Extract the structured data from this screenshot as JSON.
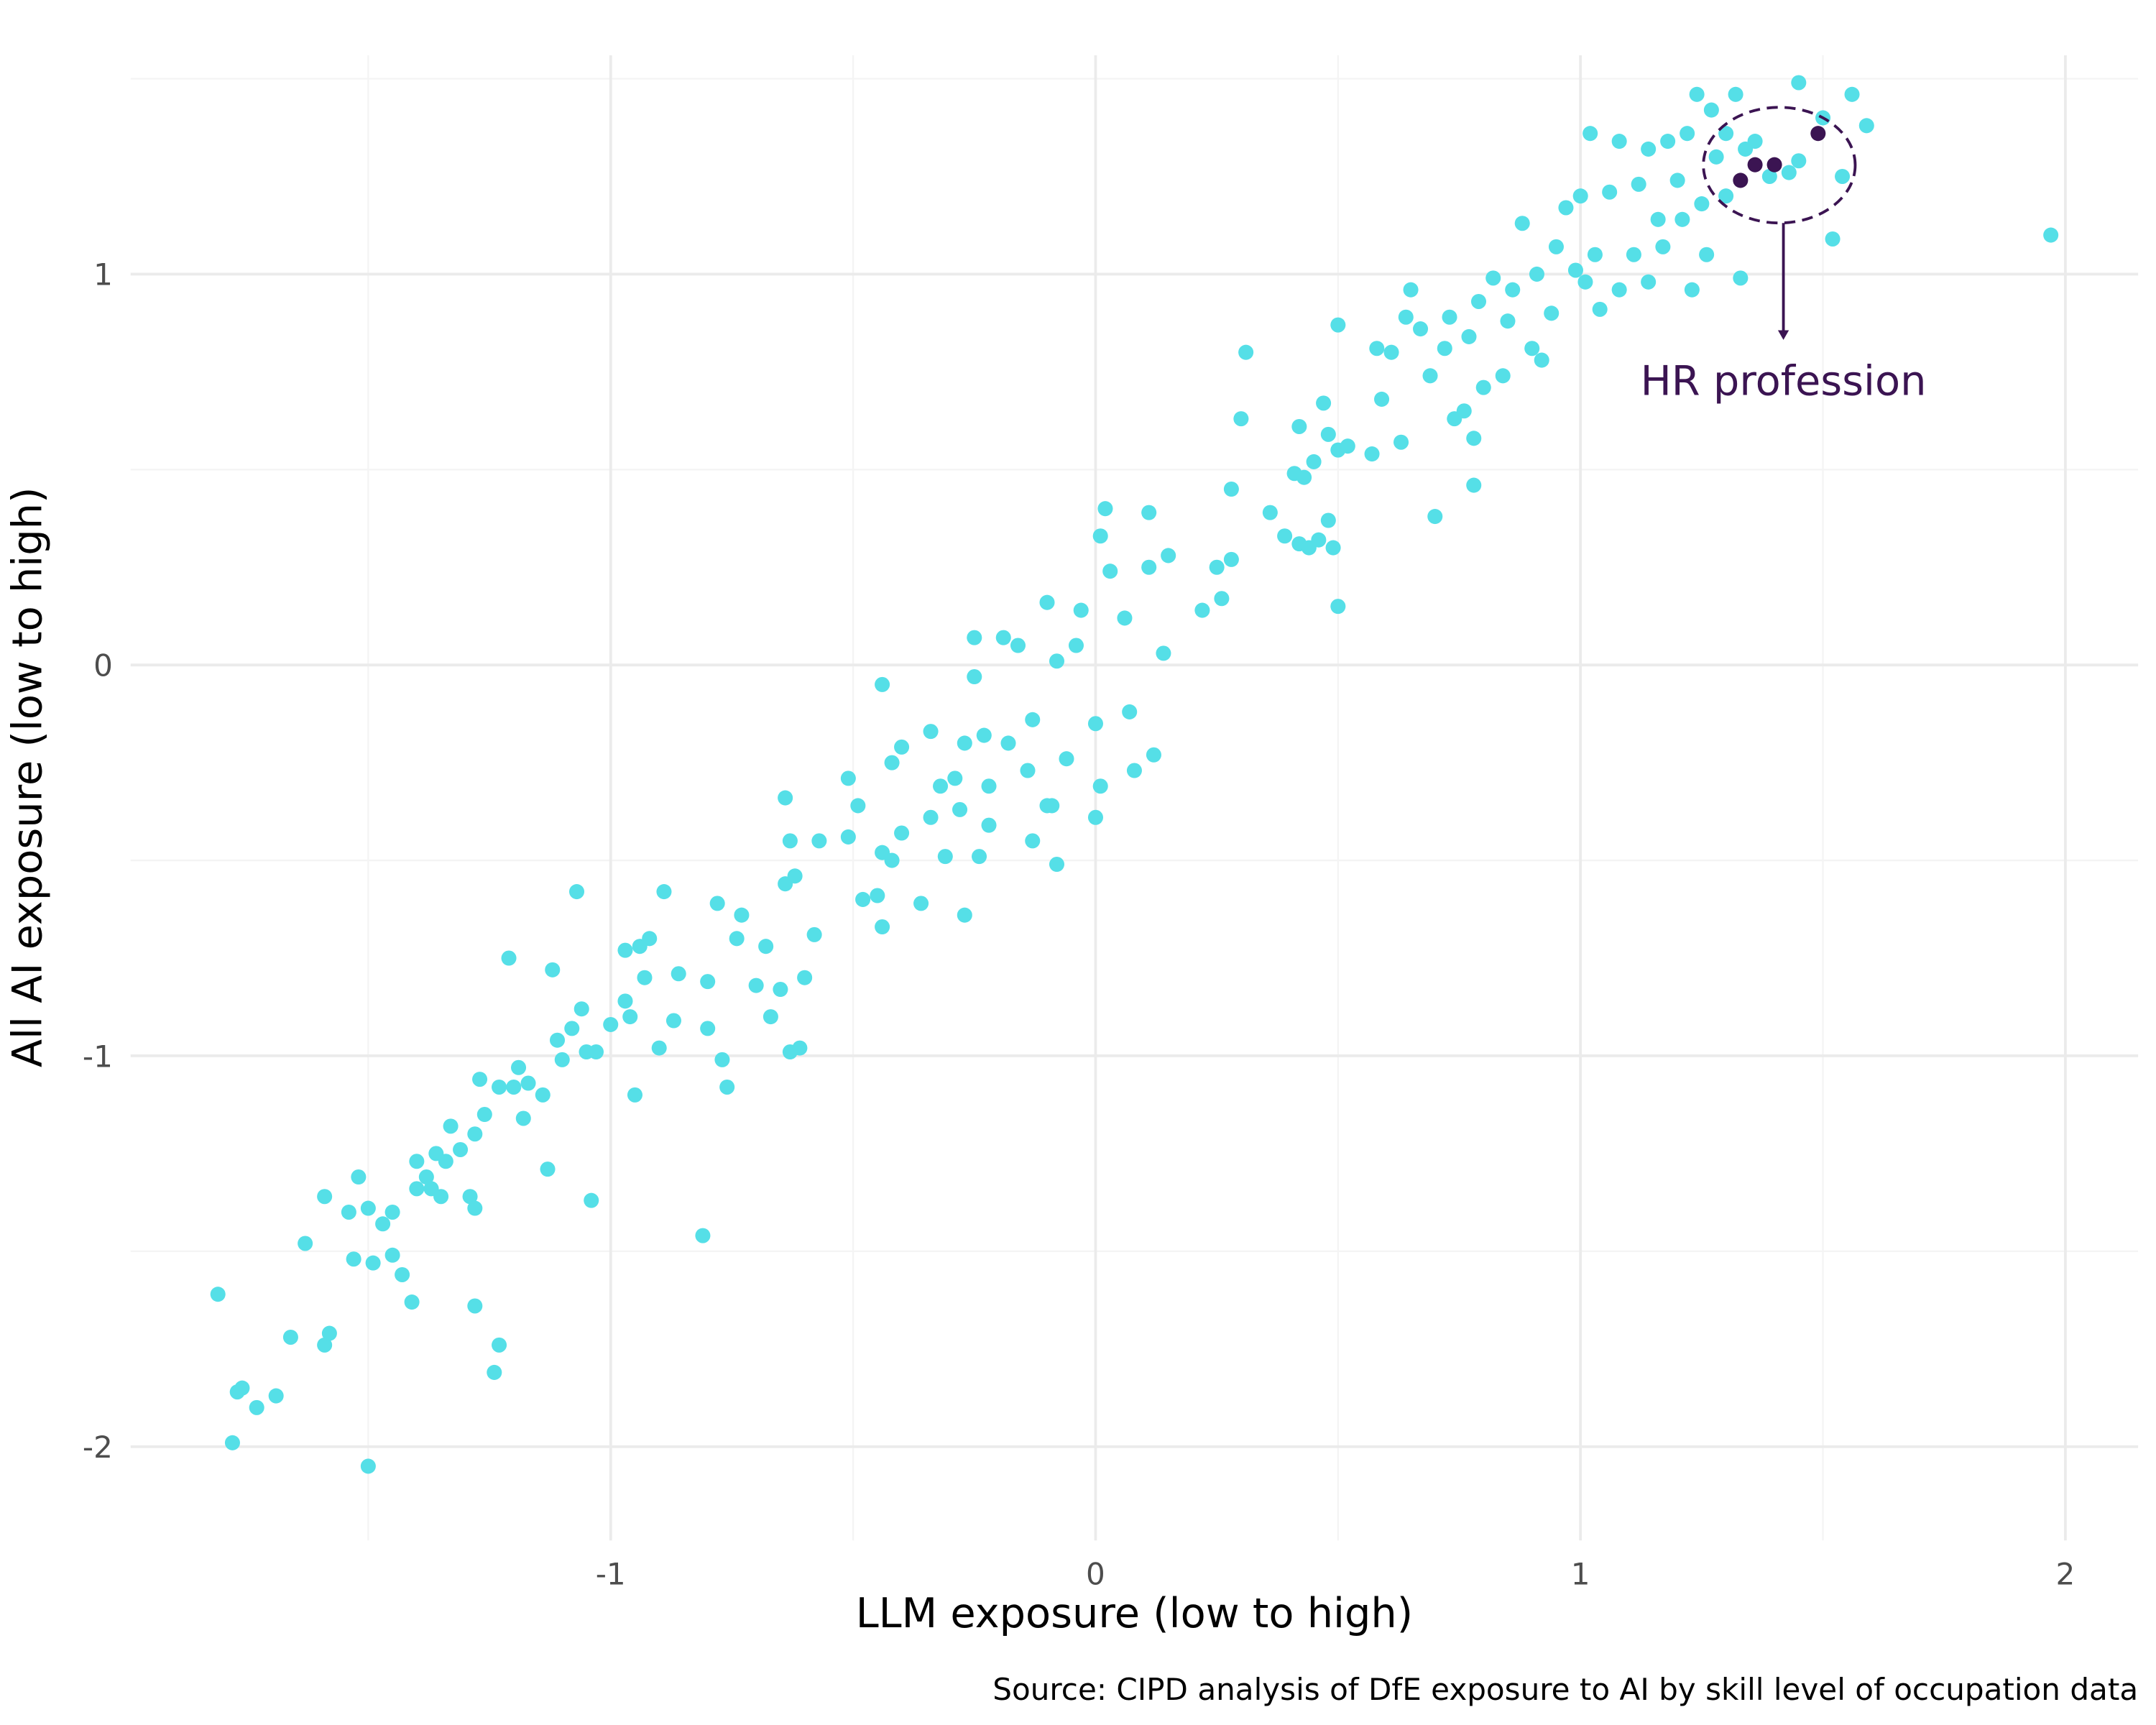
{
  "chart_data": {
    "type": "scatter",
    "x_label": "LLM exposure (low to high)",
    "y_label": "All AI exposure (low to high)",
    "caption": "Source: CIPD analysis of DfE exposure to AI by skill level of occupation data",
    "annotation": "HR profession",
    "xlim": [
      -1.99,
      2.15
    ],
    "ylim": [
      -2.24,
      1.56
    ],
    "xticks": [
      -1,
      0,
      1,
      2
    ],
    "yticks": [
      -2,
      -1,
      0,
      1
    ],
    "xminorticks": [
      -1.5,
      -0.5,
      0.5,
      1.5
    ],
    "yminorticks": [
      -1.5,
      -0.5,
      0.5,
      1.5
    ],
    "grid": true,
    "series": [
      {
        "color": "#55dfe7",
        "x": [
          -1.81,
          -1.78,
          -1.77,
          -1.76,
          -1.73,
          -1.69,
          -1.66,
          -1.63,
          -1.59,
          -1.59,
          -1.58,
          -1.54,
          -1.53,
          -1.52,
          -1.5,
          -1.5,
          -1.49,
          -1.47,
          -1.45,
          -1.45,
          -1.43,
          -1.41,
          -1.4,
          -1.4,
          -1.38,
          -1.37,
          -1.36,
          -1.35,
          -1.34,
          -1.33,
          -1.31,
          -1.29,
          -1.28,
          -1.28,
          -1.28,
          -1.27,
          -1.26,
          -1.24,
          -1.23,
          -1.23,
          -1.21,
          -1.2,
          -1.19,
          -1.18,
          -1.17,
          -1.14,
          -1.13,
          -1.12,
          -1.11,
          -1.1,
          -1.08,
          -1.07,
          -1.06,
          -1.05,
          -1.04,
          -1.03,
          -1.0,
          -0.97,
          -0.97,
          -0.96,
          -0.95,
          -0.94,
          -0.93,
          -0.92,
          -0.9,
          -0.89,
          -0.87,
          -0.86,
          -0.81,
          -0.8,
          -0.8,
          -0.78,
          -0.77,
          -0.76,
          -0.74,
          -0.73,
          -0.7,
          -0.68,
          -0.67,
          -0.65,
          -0.64,
          -0.64,
          -0.63,
          -0.63,
          -0.62,
          -0.61,
          -0.6,
          -0.58,
          -0.57,
          -0.51,
          -0.51,
          -0.49,
          -0.48,
          -0.45,
          -0.44,
          -0.44,
          -0.44,
          -0.42,
          -0.42,
          -0.4,
          -0.4,
          -0.36,
          -0.34,
          -0.34,
          -0.32,
          -0.31,
          -0.29,
          -0.28,
          -0.27,
          -0.27,
          -0.25,
          -0.25,
          -0.24,
          -0.23,
          -0.22,
          -0.22,
          -0.19,
          -0.18,
          -0.16,
          -0.14,
          -0.13,
          -0.13,
          -0.1,
          -0.1,
          -0.09,
          -0.08,
          -0.08,
          -0.06,
          -0.04,
          -0.03,
          0.0,
          0.0,
          0.01,
          0.01,
          0.02,
          0.03,
          0.06,
          0.07,
          0.08,
          0.11,
          0.11,
          0.12,
          0.14,
          0.15,
          0.22,
          0.25,
          0.26,
          0.28,
          0.28,
          0.3,
          0.31,
          0.36,
          0.39,
          0.41,
          0.42,
          0.42,
          0.43,
          0.44,
          0.45,
          0.46,
          0.47,
          0.48,
          0.48,
          0.49,
          0.5,
          0.5,
          0.5,
          0.52,
          0.57,
          0.58,
          0.59,
          0.61,
          0.63,
          0.64,
          0.65,
          0.67,
          0.69,
          0.7,
          0.72,
          0.73,
          0.74,
          0.76,
          0.77,
          0.78,
          0.78,
          0.79,
          0.8,
          0.82,
          0.84,
          0.85,
          0.86,
          0.88,
          0.9,
          0.91,
          0.92,
          0.94,
          0.95,
          0.97,
          0.99,
          1.0,
          1.01,
          1.02,
          1.03,
          1.04,
          1.06,
          1.08,
          1.08,
          1.11,
          1.12,
          1.14,
          1.14,
          1.16,
          1.17,
          1.18,
          1.2,
          1.21,
          1.22,
          1.23,
          1.24,
          1.25,
          1.26,
          1.27,
          1.28,
          1.3,
          1.3,
          1.32,
          1.33,
          1.34,
          1.36,
          1.39,
          1.43,
          1.45,
          1.45,
          1.5,
          1.52,
          1.54,
          1.56,
          1.59,
          1.97
        ],
        "y": [
          -1.61,
          -1.99,
          -1.86,
          -1.85,
          -1.9,
          -1.87,
          -1.72,
          -1.48,
          -1.36,
          -1.74,
          -1.71,
          -1.4,
          -1.52,
          -1.31,
          -2.05,
          -1.39,
          -1.53,
          -1.43,
          -1.4,
          -1.51,
          -1.56,
          -1.63,
          -1.34,
          -1.27,
          -1.31,
          -1.34,
          -1.25,
          -1.36,
          -1.27,
          -1.18,
          -1.24,
          -1.36,
          -1.39,
          -1.64,
          -1.2,
          -1.06,
          -1.15,
          -1.81,
          -1.74,
          -1.08,
          -0.75,
          -1.08,
          -1.03,
          -1.16,
          -1.07,
          -1.1,
          -1.29,
          -0.78,
          -0.96,
          -1.01,
          -0.93,
          -0.58,
          -0.88,
          -0.99,
          -1.37,
          -0.99,
          -0.92,
          -0.86,
          -0.73,
          -0.9,
          -1.1,
          -0.72,
          -0.8,
          -0.7,
          -0.98,
          -0.58,
          -0.91,
          -0.79,
          -1.46,
          -0.81,
          -0.93,
          -0.61,
          -1.01,
          -1.08,
          -0.7,
          -0.64,
          -0.82,
          -0.72,
          -0.9,
          -0.83,
          -0.34,
          -0.56,
          -0.45,
          -0.99,
          -0.54,
          -0.98,
          -0.8,
          -0.69,
          -0.45,
          -0.29,
          -0.44,
          -0.36,
          -0.6,
          -0.59,
          -0.05,
          -0.48,
          -0.67,
          -0.25,
          -0.5,
          -0.21,
          -0.43,
          -0.61,
          -0.17,
          -0.39,
          -0.31,
          -0.49,
          -0.29,
          -0.37,
          -0.2,
          -0.64,
          -0.03,
          0.07,
          -0.49,
          -0.18,
          -0.31,
          -0.41,
          0.07,
          -0.2,
          0.05,
          -0.27,
          -0.14,
          -0.45,
          -0.36,
          0.16,
          -0.36,
          -0.51,
          0.01,
          -0.24,
          0.05,
          0.14,
          -0.15,
          -0.39,
          0.33,
          -0.31,
          0.4,
          0.24,
          0.12,
          -0.12,
          -0.27,
          0.25,
          0.39,
          -0.23,
          0.03,
          0.28,
          0.14,
          0.25,
          0.17,
          0.27,
          0.45,
          0.63,
          0.8,
          0.39,
          0.33,
          0.49,
          0.61,
          0.31,
          0.48,
          0.3,
          0.52,
          0.32,
          0.67,
          0.37,
          0.59,
          0.3,
          0.15,
          0.87,
          0.55,
          0.56,
          0.54,
          0.81,
          0.68,
          0.8,
          0.57,
          0.89,
          0.96,
          0.86,
          0.74,
          0.38,
          0.81,
          0.89,
          0.63,
          0.65,
          0.84,
          0.58,
          0.46,
          0.93,
          0.71,
          0.99,
          0.74,
          0.88,
          0.96,
          1.13,
          0.81,
          1.0,
          0.78,
          0.9,
          1.07,
          1.17,
          1.01,
          1.2,
          0.98,
          1.36,
          1.05,
          0.91,
          1.21,
          0.96,
          1.34,
          1.05,
          1.23,
          0.98,
          1.32,
          1.14,
          1.07,
          1.34,
          1.24,
          1.14,
          1.36,
          0.96,
          1.46,
          1.18,
          1.05,
          1.42,
          1.3,
          1.36,
          1.2,
          1.46,
          0.99,
          1.32,
          1.34,
          1.25,
          1.26,
          1.49,
          1.29,
          1.4,
          1.09,
          1.25,
          1.46,
          1.38,
          1.1
        ]
      },
      {
        "color": "#3b1452",
        "x": [
          1.33,
          1.36,
          1.4,
          1.49
        ],
        "y": [
          1.24,
          1.28,
          1.28,
          1.36
        ]
      }
    ]
  }
}
